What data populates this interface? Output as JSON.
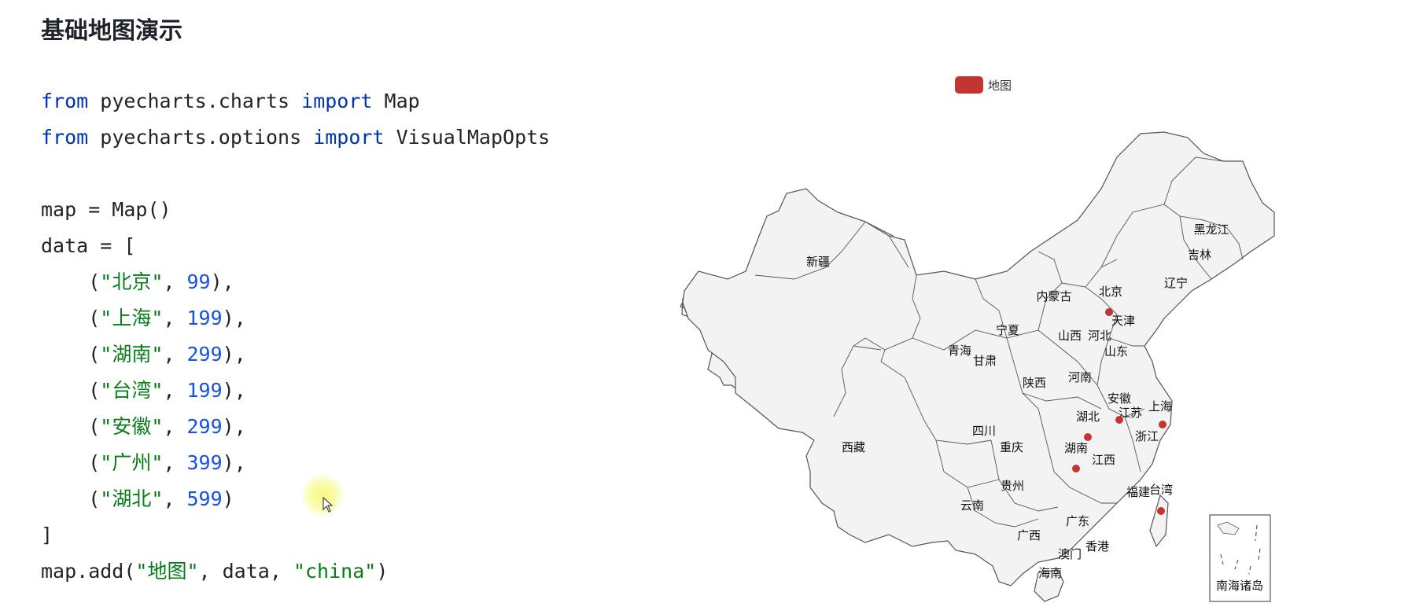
{
  "title": "基础地图演示",
  "code": {
    "line1": {
      "kw1": "from",
      "mod": " pyecharts.charts ",
      "kw2": "import",
      "name": " Map"
    },
    "line2": {
      "kw1": "from",
      "mod": " pyecharts.options ",
      "kw2": "import",
      "name": " VisualMapOpts"
    },
    "line3": "map = Map()",
    "line4": "data = [",
    "items": [
      {
        "name": "\"北京\"",
        "value": "99"
      },
      {
        "name": "\"上海\"",
        "value": "199"
      },
      {
        "name": "\"湖南\"",
        "value": "299"
      },
      {
        "name": "\"台湾\"",
        "value": "199"
      },
      {
        "name": "\"安徽\"",
        "value": "299"
      },
      {
        "name": "\"广州\"",
        "value": "399"
      },
      {
        "name": "\"湖北\"",
        "value": "599"
      }
    ],
    "close": "]",
    "add": {
      "pre": "map.add(",
      "series": "\"地图\"",
      "mid": ", data, ",
      "maptype": "\"china\"",
      "end": ")"
    }
  },
  "chart_data": {
    "type": "map",
    "map": "china",
    "legend": [
      "地图"
    ],
    "legend_position": "top-center",
    "series_color": "#c23531",
    "region_fill": "#f3f3f3",
    "data": [
      {
        "region": "北京",
        "value": 99
      },
      {
        "region": "上海",
        "value": 199
      },
      {
        "region": "湖南",
        "value": 299
      },
      {
        "region": "台湾",
        "value": 199
      },
      {
        "region": "安徽",
        "value": 299
      },
      {
        "region": "广州",
        "value": 399
      },
      {
        "region": "湖北",
        "value": 599
      }
    ],
    "labels": [
      "新疆",
      "西藏",
      "青海",
      "甘肃",
      "宁夏",
      "内蒙古",
      "黑龙江",
      "吉林",
      "辽宁",
      "北京",
      "天津",
      "河北",
      "山西",
      "山东",
      "陕西",
      "河南",
      "四川",
      "重庆",
      "湖北",
      "安徽",
      "江苏",
      "上海",
      "浙江",
      "湖南",
      "江西",
      "福建",
      "台湾",
      "贵州",
      "云南",
      "广西",
      "广东",
      "澳门",
      "香港",
      "海南",
      "南海诸岛"
    ]
  }
}
